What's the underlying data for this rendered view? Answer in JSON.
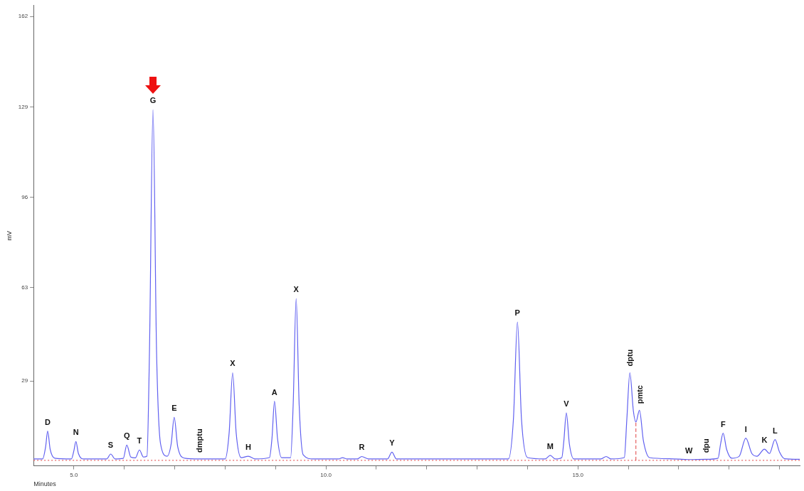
{
  "chart_data": {
    "type": "line",
    "xlabel": "Minutes",
    "ylabel": "mV",
    "xlim": [
      4.2,
      19.4
    ],
    "ylim": [
      -2,
      166
    ],
    "xticks": [
      {
        "value": 5,
        "label": "5.0"
      },
      {
        "value": 6,
        "label": null
      },
      {
        "value": 7,
        "label": null
      },
      {
        "value": 8,
        "label": null
      },
      {
        "value": 9,
        "label": null
      },
      {
        "value": 10,
        "label": "10.0"
      },
      {
        "value": 11,
        "label": null
      },
      {
        "value": 12,
        "label": null
      },
      {
        "value": 13,
        "label": null
      },
      {
        "value": 14,
        "label": null
      },
      {
        "value": 15,
        "label": "15.0"
      },
      {
        "value": 16,
        "label": null
      },
      {
        "value": 17,
        "label": null
      },
      {
        "value": 18,
        "label": null
      },
      {
        "value": 19,
        "label": null
      }
    ],
    "yticks": [
      29,
      63,
      96,
      129,
      162
    ],
    "grid": false,
    "legend": false,
    "marker": "none",
    "line_style": "solid",
    "series": [
      {
        "color": "#6060f0",
        "x": [
          4.2,
          4.38,
          4.44,
          4.48,
          4.53,
          4.62,
          4.95,
          5.0,
          5.04,
          5.09,
          5.2,
          5.65,
          5.73,
          5.82,
          5.98,
          6.05,
          6.13,
          6.22,
          6.3,
          6.38,
          6.45,
          6.5,
          6.57,
          6.64,
          6.72,
          6.85,
          6.93,
          6.99,
          7.06,
          7.2,
          7.49,
          8.0,
          8.08,
          8.15,
          8.22,
          8.32,
          8.46,
          8.6,
          8.88,
          8.93,
          8.98,
          9.04,
          9.12,
          9.3,
          9.35,
          9.41,
          9.47,
          9.55,
          9.75,
          10.25,
          10.33,
          10.42,
          10.62,
          10.71,
          10.85,
          11.22,
          11.31,
          11.4,
          13.62,
          13.72,
          13.8,
          13.88,
          14.0,
          14.35,
          14.45,
          14.55,
          14.68,
          14.72,
          14.77,
          14.83,
          14.92,
          15.45,
          15.56,
          15.66,
          15.92,
          15.97,
          16.03,
          16.1,
          16.15,
          16.22,
          16.3,
          16.42,
          16.82,
          17.2,
          17.53,
          17.78,
          17.83,
          17.88,
          17.95,
          18.05,
          18.2,
          18.33,
          18.45,
          18.55,
          18.7,
          18.8,
          18.91,
          19.0,
          19.1,
          19.4
        ],
        "values": [
          0.5,
          0.5,
          5,
          10.7,
          4,
          0.8,
          0.5,
          3.5,
          6.9,
          2.5,
          0.5,
          0.5,
          2.3,
          0.5,
          0.7,
          5.6,
          1.2,
          0.9,
          3.8,
          1.2,
          1.5,
          40,
          128,
          40,
          6,
          1.5,
          6,
          15.7,
          5,
          0.8,
          0.5,
          0.5,
          10,
          32,
          10,
          1,
          1.5,
          0.5,
          1,
          8,
          21.6,
          8,
          1,
          1,
          20,
          59,
          20,
          2,
          0.5,
          0.5,
          1,
          0.5,
          0.5,
          1.4,
          0.5,
          0.5,
          3,
          0.5,
          0.5,
          15,
          50.5,
          15,
          1,
          0.5,
          1.8,
          0.5,
          1,
          7,
          17.3,
          6,
          0.5,
          0.5,
          1.4,
          0.5,
          1,
          15,
          32,
          18,
          14,
          18.3,
          7,
          1,
          0.6,
          0.3,
          0.4,
          0.8,
          6,
          9.9,
          4,
          0.8,
          1.5,
          8.1,
          2.5,
          1.5,
          4.1,
          2.5,
          7.6,
          3,
          0.6,
          0.4
        ]
      }
    ],
    "ref_lines": [
      {
        "axis": "y",
        "value": 0,
        "color": "#e04040",
        "line_style": "dotted"
      },
      {
        "axis": "x",
        "value": 16.15,
        "color": "#e04040",
        "line_style": "dashed"
      }
    ],
    "annotations": [
      {
        "text": "D",
        "x": 4.48,
        "y": 10.7
      },
      {
        "text": "N",
        "x": 5.04,
        "y": 6.9
      },
      {
        "text": "S",
        "x": 5.73,
        "y": 2.3
      },
      {
        "text": "Q",
        "x": 6.05,
        "y": 5.6
      },
      {
        "text": "T",
        "x": 6.3,
        "y": 3.8
      },
      {
        "text": "G",
        "x": 6.57,
        "y": 128
      },
      {
        "text": "E",
        "x": 6.99,
        "y": 15.7
      },
      {
        "text": "dmptu",
        "x": 7.49,
        "y": 0.5
      },
      {
        "text": "X",
        "x": 8.15,
        "y": 32
      },
      {
        "text": "H",
        "x": 8.46,
        "y": 1.5
      },
      {
        "text": "A",
        "x": 8.98,
        "y": 21.6
      },
      {
        "text": "X",
        "x": 9.41,
        "y": 59
      },
      {
        "text": "R",
        "x": 10.71,
        "y": 1.4
      },
      {
        "text": "Y",
        "x": 11.31,
        "y": 3
      },
      {
        "text": "P",
        "x": 13.8,
        "y": 50.5
      },
      {
        "text": "M",
        "x": 14.45,
        "y": 1.8
      },
      {
        "text": "V",
        "x": 14.77,
        "y": 17.3
      },
      {
        "text": "dptu",
        "x": 16.03,
        "y": 32
      },
      {
        "text": "pmtc",
        "x": 16.22,
        "y": 18.3
      },
      {
        "text": "W",
        "x": 17.2,
        "y": 0.3
      },
      {
        "text": "dpu",
        "x": 17.53,
        "y": 0.4
      },
      {
        "text": "F",
        "x": 17.88,
        "y": 9.9
      },
      {
        "text": "I",
        "x": 18.33,
        "y": 8.1
      },
      {
        "text": "K",
        "x": 18.7,
        "y": 4.1
      },
      {
        "text": "L",
        "x": 18.91,
        "y": 7.6
      }
    ]
  }
}
